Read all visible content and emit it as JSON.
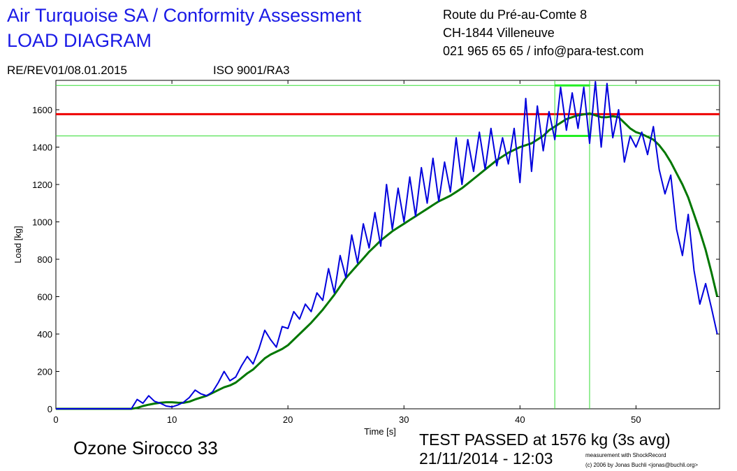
{
  "header": {
    "title": "Air Turquoise SA / Conformity Assessment",
    "subtitle": "LOAD DIAGRAM",
    "address": [
      "Route du Pré-au-Comte 8",
      "CH-1844 Villeneuve",
      "021 965 65 65 / info@para-test.com"
    ],
    "revision": "RE/REV01/08.01.2015",
    "iso": "ISO 9001/RA3"
  },
  "chart_data": {
    "type": "line",
    "x_label": "Time [s]",
    "y_label": "Load [kg]",
    "xlim": [
      0,
      57.2
    ],
    "ylim": [
      0,
      1757
    ],
    "xticks": [
      0,
      10,
      20,
      30,
      40,
      50
    ],
    "yticks": [
      0,
      200,
      400,
      600,
      800,
      1000,
      1200,
      1400,
      1600
    ],
    "x": [
      0,
      0.5,
      1,
      1.5,
      2,
      2.5,
      3,
      3.5,
      4,
      4.5,
      5,
      5.5,
      6,
      6.5,
      7,
      7.5,
      8,
      8.5,
      9,
      9.5,
      10,
      10.5,
      11,
      11.5,
      12,
      12.5,
      13,
      13.5,
      14,
      14.5,
      15,
      15.5,
      16,
      16.5,
      17,
      17.5,
      18,
      18.5,
      19,
      19.5,
      20,
      20.5,
      21,
      21.5,
      22,
      22.5,
      23,
      23.5,
      24,
      24.5,
      25,
      25.5,
      26,
      26.5,
      27,
      27.5,
      28,
      28.5,
      29,
      29.5,
      30,
      30.5,
      31,
      31.5,
      32,
      32.5,
      33,
      33.5,
      34,
      34.5,
      35,
      35.5,
      36,
      36.5,
      37,
      37.5,
      38,
      38.5,
      39,
      39.5,
      40,
      40.5,
      41,
      41.5,
      42,
      42.5,
      43,
      43.5,
      44,
      44.5,
      45,
      45.5,
      46,
      46.5,
      47,
      47.5,
      48,
      48.5,
      49,
      49.5,
      50,
      50.5,
      51,
      51.5,
      52,
      52.5,
      53,
      53.5,
      54,
      54.5,
      55,
      55.5,
      56,
      56.5,
      57
    ],
    "series": [
      {
        "color": "#0000dd",
        "values": [
          0,
          0,
          0,
          0,
          0,
          0,
          0,
          0,
          0,
          0,
          0,
          0,
          0,
          0,
          50,
          30,
          70,
          40,
          30,
          15,
          10,
          20,
          35,
          60,
          100,
          80,
          70,
          90,
          140,
          200,
          150,
          170,
          230,
          280,
          240,
          320,
          420,
          370,
          330,
          440,
          430,
          520,
          480,
          560,
          520,
          620,
          580,
          750,
          620,
          820,
          700,
          930,
          780,
          990,
          860,
          1050,
          870,
          1200,
          960,
          1180,
          1000,
          1240,
          1030,
          1290,
          1100,
          1340,
          1110,
          1320,
          1160,
          1450,
          1200,
          1440,
          1270,
          1480,
          1280,
          1500,
          1300,
          1450,
          1310,
          1500,
          1210,
          1660,
          1270,
          1620,
          1380,
          1590,
          1440,
          1720,
          1490,
          1690,
          1500,
          1720,
          1420,
          1750,
          1400,
          1740,
          1450,
          1600,
          1320,
          1460,
          1400,
          1480,
          1360,
          1510,
          1280,
          1150,
          1250,
          960,
          820,
          1040,
          740,
          560,
          670,
          540,
          400
        ]
      },
      {
        "color": "#007700",
        "values": [
          0,
          0,
          0,
          0,
          0,
          0,
          0,
          0,
          0,
          0,
          0,
          0,
          0,
          0,
          5,
          15,
          22,
          28,
          32,
          35,
          35,
          33,
          32,
          38,
          50,
          60,
          70,
          85,
          100,
          115,
          125,
          140,
          165,
          190,
          210,
          240,
          270,
          290,
          305,
          320,
          340,
          370,
          400,
          430,
          460,
          495,
          530,
          570,
          610,
          655,
          700,
          735,
          770,
          805,
          840,
          870,
          900,
          925,
          950,
          970,
          990,
          1010,
          1030,
          1050,
          1070,
          1090,
          1110,
          1125,
          1140,
          1160,
          1180,
          1205,
          1230,
          1255,
          1280,
          1305,
          1330,
          1350,
          1370,
          1385,
          1400,
          1410,
          1420,
          1440,
          1460,
          1490,
          1510,
          1530,
          1550,
          1560,
          1570,
          1575,
          1580,
          1570,
          1560,
          1560,
          1565,
          1560,
          1530,
          1500,
          1480,
          1470,
          1455,
          1440,
          1410,
          1370,
          1320,
          1260,
          1200,
          1130,
          1040,
          950,
          850,
          730,
          600
        ]
      }
    ],
    "hlines": [
      {
        "value": 1576,
        "color": "#ee0000"
      },
      {
        "value": 1730,
        "color": "#33dd33"
      },
      {
        "value": 1460,
        "color": "#33dd33"
      }
    ],
    "vlines": [
      {
        "value": 43,
        "color": "#33dd33"
      },
      {
        "value": 46,
        "color": "#33dd33"
      }
    ],
    "model": "Ozone Sirocco 33",
    "result": "TEST PASSED at 1576 kg (3s avg)",
    "datetime": "21/11/2014 - 12:03",
    "credit": [
      "measurement with ShockRecord",
      "(c) 2006 by Jonas Buchli <jonas@buchli.org>"
    ]
  }
}
